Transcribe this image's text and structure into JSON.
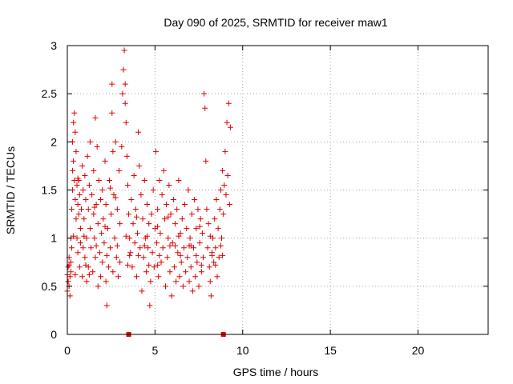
{
  "chart_data": {
    "type": "scatter",
    "title": "Day 090 of 2025, SRMTID for receiver maw1",
    "xlabel": "GPS time / hours",
    "ylabel": "SRMTID / TECUs",
    "xlim": [
      0,
      24
    ],
    "ylim": [
      0,
      3
    ],
    "xticks": [
      0,
      5,
      10,
      15,
      20
    ],
    "yticks": [
      0,
      0.5,
      1,
      1.5,
      2,
      2.5,
      3
    ],
    "xtick_labels": [
      "0",
      "5",
      "10",
      "15",
      "20"
    ],
    "ytick_labels": [
      "0",
      "0.5",
      "1",
      "1.5",
      "2",
      "2.5",
      "3"
    ],
    "grid": true,
    "marker": "plus",
    "color": "#e00000",
    "baseline_markers": [
      3.5,
      8.9
    ],
    "series": [
      {
        "values": [
          [
            0.0,
            0.45
          ],
          [
            0.0,
            0.62
          ],
          [
            0.05,
            0.7
          ],
          [
            0.05,
            0.55
          ],
          [
            0.1,
            0.5
          ],
          [
            0.1,
            0.8
          ],
          [
            0.15,
            0.6
          ],
          [
            0.15,
            0.4
          ],
          [
            0.2,
            0.75
          ],
          [
            0.2,
            0.65
          ],
          [
            0.2,
            1.0
          ],
          [
            0.25,
            0.9
          ],
          [
            0.25,
            1.3
          ],
          [
            0.3,
            1.5
          ],
          [
            0.3,
            1.7
          ],
          [
            0.3,
            2.0
          ],
          [
            0.35,
            2.2
          ],
          [
            0.35,
            1.8
          ],
          [
            0.4,
            2.3
          ],
          [
            0.4,
            1.6
          ],
          [
            0.45,
            1.4
          ],
          [
            0.45,
            2.1
          ],
          [
            0.5,
            1.2
          ],
          [
            0.5,
            1.9
          ],
          [
            0.55,
            1.55
          ],
          [
            0.55,
            1.0
          ],
          [
            0.6,
            1.35
          ],
          [
            0.6,
            0.85
          ],
          [
            0.65,
            1.6
          ],
          [
            0.65,
            1.25
          ],
          [
            0.7,
            0.7
          ],
          [
            0.7,
            1.45
          ],
          [
            0.75,
            1.1
          ],
          [
            0.75,
            0.95
          ],
          [
            0.8,
            1.3
          ],
          [
            0.85,
            0.6
          ],
          [
            0.85,
            1.75
          ],
          [
            0.9,
            0.9
          ],
          [
            0.9,
            1.5
          ],
          [
            0.95,
            1.2
          ],
          [
            1.0,
            0.8
          ],
          [
            1.0,
            1.65
          ],
          [
            1.05,
            1.4
          ],
          [
            1.1,
            1.0
          ],
          [
            1.1,
            0.55
          ],
          [
            1.15,
            1.85
          ],
          [
            1.2,
            1.3
          ],
          [
            1.2,
            0.7
          ],
          [
            1.25,
            1.55
          ],
          [
            1.3,
            1.1
          ],
          [
            1.3,
            2.0
          ],
          [
            1.35,
            0.9
          ],
          [
            1.4,
            1.45
          ],
          [
            1.45,
            0.65
          ],
          [
            1.5,
            1.25
          ],
          [
            1.5,
            1.7
          ],
          [
            1.55,
            1.0
          ],
          [
            1.6,
            2.25
          ],
          [
            1.6,
            0.8
          ],
          [
            1.65,
            1.35
          ],
          [
            1.7,
            1.95
          ],
          [
            1.75,
            0.5
          ],
          [
            1.75,
            1.15
          ],
          [
            1.8,
            1.6
          ],
          [
            1.85,
            0.85
          ],
          [
            1.9,
            1.4
          ],
          [
            1.9,
            0.6
          ],
          [
            1.95,
            1.05
          ],
          [
            2.0,
            1.5
          ],
          [
            2.0,
            0.75
          ],
          [
            2.05,
            1.2
          ],
          [
            2.1,
            0.95
          ],
          [
            2.15,
            1.8
          ],
          [
            2.2,
            0.55
          ],
          [
            2.2,
            1.35
          ],
          [
            2.25,
            0.3
          ],
          [
            2.3,
            1.1
          ],
          [
            2.35,
            0.7
          ],
          [
            2.4,
            1.6
          ],
          [
            2.45,
            0.9
          ],
          [
            2.5,
            1.25
          ],
          [
            2.55,
            2.6
          ],
          [
            2.55,
            2.3
          ],
          [
            2.6,
            1.9
          ],
          [
            2.6,
            0.65
          ],
          [
            2.65,
            1.45
          ],
          [
            2.7,
            1.0
          ],
          [
            2.75,
            2.0
          ],
          [
            2.8,
            0.8
          ],
          [
            2.85,
            1.3
          ],
          [
            2.9,
            0.6
          ],
          [
            2.95,
            1.7
          ],
          [
            3.0,
            1.15
          ],
          [
            3.0,
            0.75
          ],
          [
            3.1,
            1.95
          ],
          [
            3.15,
            2.5
          ],
          [
            3.2,
            2.75
          ],
          [
            3.25,
            2.95
          ],
          [
            3.3,
            2.6
          ],
          [
            3.3,
            2.4
          ],
          [
            3.35,
            2.2
          ],
          [
            3.4,
            1.85
          ],
          [
            3.45,
            1.55
          ],
          [
            3.5,
            1.25
          ],
          [
            3.55,
            1.0
          ],
          [
            3.6,
            0.85
          ],
          [
            3.65,
            1.4
          ],
          [
            3.7,
            0.7
          ],
          [
            3.75,
            1.15
          ],
          [
            3.8,
            1.65
          ],
          [
            3.85,
            0.95
          ],
          [
            3.9,
            1.3
          ],
          [
            3.95,
            0.6
          ],
          [
            4.0,
            1.05
          ],
          [
            4.05,
            2.1
          ],
          [
            4.1,
            1.75
          ],
          [
            4.15,
            0.9
          ],
          [
            4.2,
            1.45
          ],
          [
            4.25,
            0.45
          ],
          [
            4.3,
            1.2
          ],
          [
            4.35,
            0.8
          ],
          [
            4.4,
            1.6
          ],
          [
            4.45,
            1.0
          ],
          [
            4.5,
            0.65
          ],
          [
            4.55,
            1.35
          ],
          [
            4.6,
            0.9
          ],
          [
            4.65,
            1.15
          ],
          [
            4.7,
            0.3
          ],
          [
            4.75,
            0.55
          ],
          [
            4.8,
            1.25
          ],
          [
            4.85,
            0.85
          ],
          [
            4.9,
            1.5
          ],
          [
            4.95,
            0.7
          ],
          [
            5.0,
            1.1
          ],
          [
            5.05,
            1.9
          ],
          [
            5.1,
            0.95
          ],
          [
            5.15,
            1.3
          ],
          [
            5.2,
            0.6
          ],
          [
            5.25,
            1.6
          ],
          [
            5.3,
            1.05
          ],
          [
            5.35,
            0.75
          ],
          [
            5.4,
            1.45
          ],
          [
            5.45,
            0.9
          ],
          [
            5.5,
            1.7
          ],
          [
            5.55,
            1.2
          ],
          [
            5.6,
            0.5
          ],
          [
            5.65,
            1.35
          ],
          [
            5.7,
            0.8
          ],
          [
            5.75,
            1.0
          ],
          [
            5.8,
            1.55
          ],
          [
            5.85,
            0.65
          ],
          [
            5.9,
            1.25
          ],
          [
            5.95,
            0.4
          ],
          [
            6.0,
            0.95
          ],
          [
            6.05,
            1.4
          ],
          [
            6.1,
            0.7
          ],
          [
            6.15,
            1.15
          ],
          [
            6.2,
            0.55
          ],
          [
            6.25,
            1.3
          ],
          [
            6.3,
            0.85
          ],
          [
            6.35,
            1.6
          ],
          [
            6.4,
            0.6
          ],
          [
            6.45,
            1.05
          ],
          [
            6.5,
            0.75
          ],
          [
            6.55,
            1.2
          ],
          [
            6.6,
            0.5
          ],
          [
            6.65,
            0.9
          ],
          [
            6.7,
            1.35
          ],
          [
            6.75,
            0.65
          ],
          [
            6.8,
            1.1
          ],
          [
            6.85,
            0.8
          ],
          [
            6.9,
            1.5
          ],
          [
            6.95,
            0.55
          ],
          [
            7.0,
            1.0
          ],
          [
            7.05,
            0.7
          ],
          [
            7.1,
            1.25
          ],
          [
            7.15,
            0.45
          ],
          [
            7.2,
            0.9
          ],
          [
            7.25,
            1.4
          ],
          [
            7.3,
            0.6
          ],
          [
            7.35,
            1.1
          ],
          [
            7.4,
            0.75
          ],
          [
            7.45,
            1.3
          ],
          [
            7.5,
            0.5
          ],
          [
            7.55,
            0.95
          ],
          [
            7.6,
            1.2
          ],
          [
            7.65,
            0.65
          ],
          [
            7.7,
            1.05
          ],
          [
            7.75,
            0.8
          ],
          [
            7.8,
            2.5
          ],
          [
            7.85,
            2.35
          ],
          [
            7.9,
            1.8
          ],
          [
            7.95,
            1.3
          ],
          [
            8.0,
            0.9
          ],
          [
            8.05,
            1.15
          ],
          [
            8.1,
            0.7
          ],
          [
            8.15,
            0.55
          ],
          [
            8.2,
            0.4
          ],
          [
            8.25,
            0.85
          ],
          [
            8.3,
            1.0
          ],
          [
            8.35,
            0.75
          ],
          [
            8.4,
            1.2
          ],
          [
            8.45,
            0.9
          ],
          [
            8.5,
            1.4
          ],
          [
            8.55,
            0.6
          ],
          [
            8.6,
            1.1
          ],
          [
            8.65,
            0.8
          ],
          [
            8.7,
            1.3
          ],
          [
            8.75,
            1.5
          ],
          [
            8.8,
            1.0
          ],
          [
            8.85,
            1.7
          ],
          [
            8.9,
            1.25
          ],
          [
            8.95,
            1.55
          ],
          [
            9.0,
            1.9
          ],
          [
            9.05,
            1.45
          ],
          [
            9.1,
            2.2
          ],
          [
            9.15,
            1.65
          ],
          [
            9.2,
            2.4
          ],
          [
            9.25,
            1.35
          ],
          [
            9.3,
            2.15
          ],
          [
            0.1,
            0.72
          ],
          [
            0.6,
            1.62
          ],
          [
            1.25,
            0.62
          ],
          [
            2.45,
            1.52
          ],
          [
            3.55,
            0.82
          ],
          [
            4.4,
            0.92
          ],
          [
            5.15,
            0.72
          ],
          [
            6.15,
            0.92
          ],
          [
            7.35,
            0.82
          ],
          [
            8.45,
            0.72
          ],
          [
            0.35,
            1.02
          ],
          [
            0.95,
            1.02
          ],
          [
            1.55,
            1.32
          ],
          [
            2.15,
            1.12
          ],
          [
            2.75,
            1.42
          ],
          [
            3.35,
            1.02
          ],
          [
            3.95,
            1.22
          ],
          [
            4.55,
            1.02
          ],
          [
            5.15,
            1.12
          ],
          [
            5.75,
            1.22
          ],
          [
            6.35,
            1.02
          ],
          [
            6.95,
            0.92
          ],
          [
            7.55,
            1.12
          ],
          [
            8.15,
            1.02
          ],
          [
            8.75,
            0.92
          ],
          [
            0.45,
            0.62
          ],
          [
            1.05,
            0.72
          ],
          [
            1.65,
            0.92
          ],
          [
            2.25,
            0.82
          ],
          [
            2.85,
            0.92
          ],
          [
            3.45,
            0.72
          ],
          [
            4.05,
            0.82
          ],
          [
            4.65,
            0.72
          ],
          [
            5.25,
            0.82
          ],
          [
            5.85,
            0.92
          ],
          [
            6.45,
            0.82
          ],
          [
            7.05,
            0.92
          ],
          [
            7.65,
            0.72
          ],
          [
            8.25,
            0.82
          ],
          [
            8.85,
            0.82
          ]
        ]
      }
    ]
  }
}
